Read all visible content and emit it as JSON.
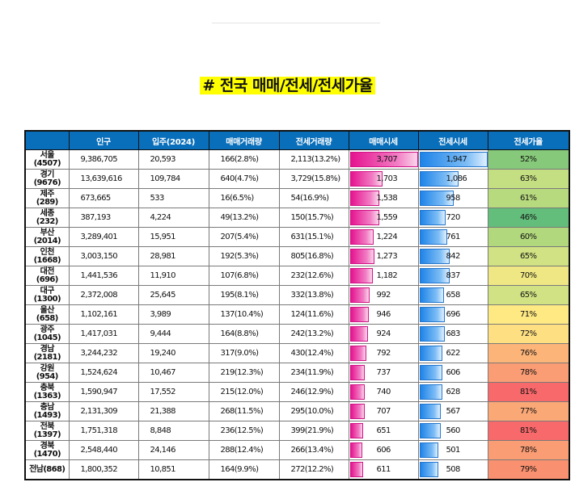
{
  "title": "# 전국 매매/전세/전세가율",
  "headers": [
    "",
    "인구",
    "입주(2024)",
    "매매거래량",
    "전세거래량",
    "매매시세",
    "전세시세",
    "전세가율"
  ],
  "rows": [
    {
      "region": "서울",
      "code": "(4507)",
      "population": "9,386,705",
      "supply": "20,593",
      "sale_vol": "166(2.8%)",
      "jeon_vol": "2,113(13.2%)",
      "sale_price": "3,707",
      "sale_val": 3707,
      "jeon_price": "1,947",
      "jeon_val": 1947,
      "ratio": "52%",
      "ratio_color": "#87c97a"
    },
    {
      "region": "경기",
      "code": "(9676)",
      "population": "13,639,616",
      "supply": "109,784",
      "sale_vol": "640(4.7%)",
      "jeon_vol": "3,729(15.8%)",
      "sale_price": "1,703",
      "sale_val": 1703,
      "jeon_price": "1,086",
      "jeon_val": 1086,
      "ratio": "63%",
      "ratio_color": "#c4de82"
    },
    {
      "region": "제주",
      "code": "(289)",
      "population": "673,665",
      "supply": "533",
      "sale_vol": "16(6.5%)",
      "jeon_vol": "54(16.9%)",
      "sale_price": "1,538",
      "sale_val": 1538,
      "jeon_price": "958",
      "jeon_val": 958,
      "ratio": "61%",
      "ratio_color": "#b8da7f"
    },
    {
      "region": "세종",
      "code": "(232)",
      "population": "387,193",
      "supply": "4,224",
      "sale_vol": "49(13.2%)",
      "jeon_vol": "150(15.7%)",
      "sale_price": "1,559",
      "sale_val": 1559,
      "jeon_price": "720",
      "jeon_val": 720,
      "ratio": "46%",
      "ratio_color": "#63be7b"
    },
    {
      "region": "부산",
      "code": "(2014)",
      "population": "3,289,401",
      "supply": "15,951",
      "sale_vol": "207(5.4%)",
      "jeon_vol": "631(15.1%)",
      "sale_price": "1,224",
      "sale_val": 1224,
      "jeon_price": "761",
      "jeon_val": 761,
      "ratio": "60%",
      "ratio_color": "#b2d87e"
    },
    {
      "region": "인천",
      "code": "(1668)",
      "population": "3,003,150",
      "supply": "28,981",
      "sale_vol": "192(5.3%)",
      "jeon_vol": "805(16.8%)",
      "sale_price": "1,273",
      "sale_val": 1273,
      "jeon_price": "842",
      "jeon_val": 842,
      "ratio": "65%",
      "ratio_color": "#d0e283"
    },
    {
      "region": "대전",
      "code": "(696)",
      "population": "1,441,536",
      "supply": "11,910",
      "sale_vol": "107(6.8%)",
      "jeon_vol": "232(12.6%)",
      "sale_price": "1,182",
      "sale_val": 1182,
      "jeon_price": "837",
      "jeon_val": 837,
      "ratio": "70%",
      "ratio_color": "#efe784"
    },
    {
      "region": "대구",
      "code": "(1300)",
      "population": "2,372,008",
      "supply": "25,645",
      "sale_vol": "195(8.1%)",
      "jeon_vol": "332(13.8%)",
      "sale_price": "992",
      "sale_val": 992,
      "jeon_price": "658",
      "jeon_val": 658,
      "ratio": "65%",
      "ratio_color": "#d0e283"
    },
    {
      "region": "울산",
      "code": "(658)",
      "population": "1,102,161",
      "supply": "3,989",
      "sale_vol": "137(10.4%)",
      "jeon_vol": "124(11.6%)",
      "sale_price": "946",
      "sale_val": 946,
      "jeon_price": "696",
      "jeon_val": 696,
      "ratio": "71%",
      "ratio_color": "#fee983"
    },
    {
      "region": "광주",
      "code": "(1045)",
      "population": "1,417,031",
      "supply": "9,444",
      "sale_vol": "164(8.8%)",
      "jeon_vol": "242(13.2%)",
      "sale_price": "924",
      "sale_val": 924,
      "jeon_price": "683",
      "jeon_val": 683,
      "ratio": "72%",
      "ratio_color": "#fee082"
    },
    {
      "region": "경남",
      "code": "(2181)",
      "population": "3,244,232",
      "supply": "19,240",
      "sale_vol": "317(9.0%)",
      "jeon_vol": "430(12.4%)",
      "sale_price": "792",
      "sale_val": 792,
      "jeon_price": "622",
      "jeon_val": 622,
      "ratio": "76%",
      "ratio_color": "#fcb479"
    },
    {
      "region": "강원",
      "code": "(954)",
      "population": "1,524,624",
      "supply": "10,467",
      "sale_vol": "219(12.3%)",
      "jeon_vol": "234(11.9%)",
      "sale_price": "737",
      "sale_val": 737,
      "jeon_price": "606",
      "jeon_val": 606,
      "ratio": "78%",
      "ratio_color": "#fa9c74"
    },
    {
      "region": "충북",
      "code": "(1363)",
      "population": "1,590,947",
      "supply": "17,552",
      "sale_vol": "215(12.0%)",
      "jeon_vol": "246(12.9%)",
      "sale_price": "740",
      "sale_val": 740,
      "jeon_price": "628",
      "jeon_val": 628,
      "ratio": "81%",
      "ratio_color": "#f8696b"
    },
    {
      "region": "충남",
      "code": "(1493)",
      "population": "2,131,309",
      "supply": "21,388",
      "sale_vol": "268(11.5%)",
      "jeon_vol": "295(10.0%)",
      "sale_price": "707",
      "sale_val": 707,
      "jeon_price": "567",
      "jeon_val": 567,
      "ratio": "77%",
      "ratio_color": "#fba877"
    },
    {
      "region": "전북",
      "code": "(1397)",
      "population": "1,751,318",
      "supply": "8,848",
      "sale_vol": "236(12.5%)",
      "jeon_vol": "399(21.9%)",
      "sale_price": "651",
      "sale_val": 651,
      "jeon_price": "560",
      "jeon_val": 560,
      "ratio": "81%",
      "ratio_color": "#f8696b"
    },
    {
      "region": "경북",
      "code": "(1470)",
      "population": "2,548,440",
      "supply": "24,146",
      "sale_vol": "288(12.4%)",
      "jeon_vol": "266(13.4%)",
      "sale_price": "606",
      "sale_val": 606,
      "jeon_price": "501",
      "jeon_val": 501,
      "ratio": "78%",
      "ratio_color": "#fa9c74"
    },
    {
      "region": "전남(868)",
      "code": "",
      "population": "1,800,352",
      "supply": "10,851",
      "sale_vol": "164(9.9%)",
      "jeon_vol": "272(12.2%)",
      "sale_price": "611",
      "sale_val": 611,
      "jeon_price": "508",
      "jeon_val": 508,
      "ratio": "79%",
      "ratio_color": "#f9906f"
    }
  ],
  "bar_colors": {
    "sale": "#e5138f",
    "jeon": "#1e83e8"
  },
  "bar_max": {
    "sale": 3707,
    "jeon": 1947
  }
}
